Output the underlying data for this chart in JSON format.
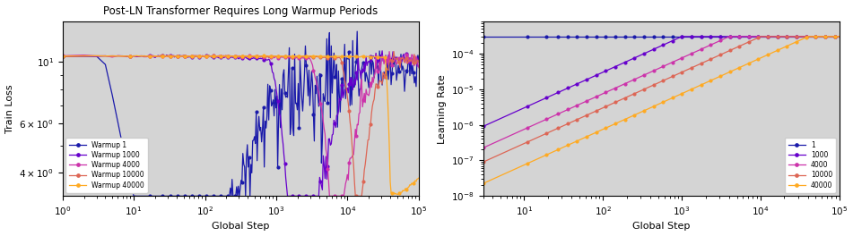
{
  "title": "Post-LN Transformer Requires Long Warmup Periods",
  "colors": {
    "1": "#1a1aaa",
    "1000": "#6600cc",
    "4000": "#cc33aa",
    "10000": "#dd6655",
    "40000": "#ffaa22"
  },
  "warmup_steps": [
    1,
    1000,
    4000,
    10000,
    40000
  ],
  "max_lr": 0.0003,
  "total_steps": 100000,
  "bg_color": "#d4d4d4",
  "fig_bg_color": "#ffffff",
  "xlabel": "Global Step",
  "ylabel_left": "Train Loss",
  "ylabel_right": "Learning Rate",
  "left_xlim": [
    1,
    100000
  ],
  "left_ylim": [
    3.3,
    14.0
  ],
  "right_xlim": [
    3,
    100000
  ],
  "right_ylim": [
    1e-08,
    0.0008
  ]
}
